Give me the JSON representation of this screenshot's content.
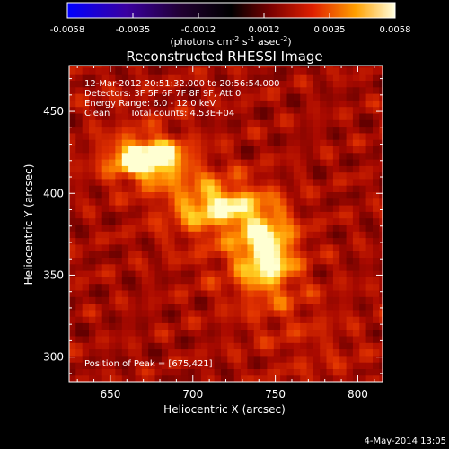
{
  "colorbar": {
    "ticks": [
      "-0.0058",
      "-0.0035",
      "-0.0012",
      "0.0012",
      "0.0035",
      "0.0058"
    ],
    "units_main": "(photons cm",
    "units_sup1": "-2",
    "units_mid": " s",
    "units_sup2": "-1",
    "units_end": " asec",
    "units_sup3": "-2",
    "units_close": ")"
  },
  "title": "Reconstructed RHESSI Image",
  "annotations": {
    "time": "12-Mar-2012 20:51:32.000 to 20:56:54.000",
    "detectors": "Detectors: 3F 5F 6F 7F 8F 9F, Att 0",
    "energy": "Energy Range: 6.0 - 12.0 keV",
    "method": "Clean",
    "counts": "Total counts: 4.53E+04",
    "peak": "Position of Peak = [675,421]"
  },
  "footer_date": "4-May-2014 13:05",
  "chart_data": {
    "type": "heatmap",
    "title": "Reconstructed RHESSI Image",
    "xlabel": "Heliocentric X (arcsec)",
    "ylabel": "Heliocentric Y (arcsec)",
    "xlim": [
      625,
      815
    ],
    "ylim": [
      285,
      478
    ],
    "xticks": [
      "650",
      "700",
      "750",
      "800"
    ],
    "yticks": [
      "300",
      "350",
      "400",
      "450"
    ],
    "xtick_values": [
      650,
      700,
      750,
      800
    ],
    "ytick_values": [
      300,
      350,
      400,
      450
    ],
    "colorbar_range": [
      -0.0058,
      0.0058
    ],
    "peak": [
      675,
      421
    ],
    "sources": [
      {
        "x": 672,
        "y": 421,
        "sx": 16,
        "sy": 9,
        "amp": 1.0
      },
      {
        "x": 745,
        "y": 365,
        "sx": 12,
        "sy": 17,
        "amp": 0.78
      },
      {
        "x": 716,
        "y": 393,
        "sx": 20,
        "sy": 11,
        "amp": 0.6
      }
    ]
  }
}
